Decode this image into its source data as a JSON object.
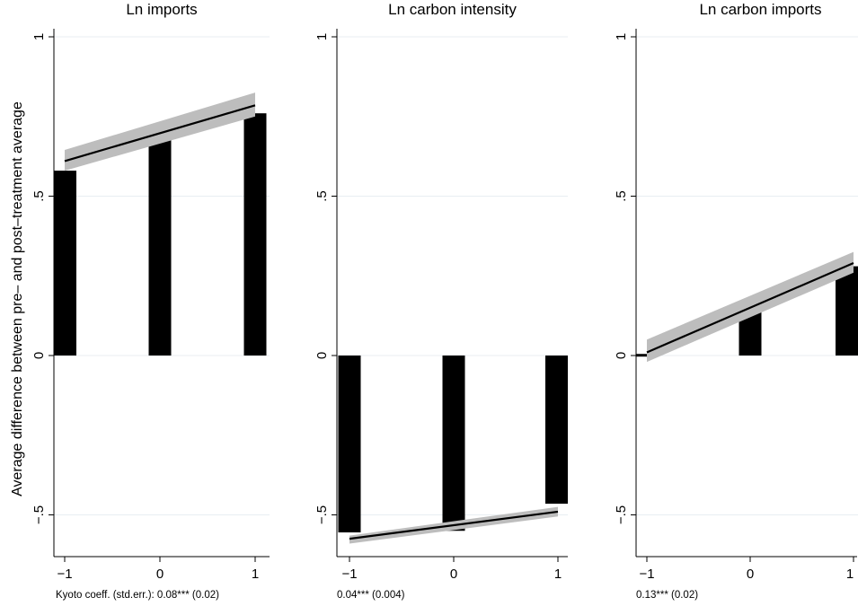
{
  "chart_data": {
    "type": "bar",
    "y_axis_title": "Average difference between pre– and post–treatment average",
    "panels": [
      {
        "title": "Ln imports",
        "note": "Kyoto coeff. (std.err.): 0.08*** (0.02)",
        "x_ticks": [
          "−1",
          "0",
          "1"
        ],
        "y_ticks": [
          "−.5",
          "0",
          ".5",
          "1"
        ],
        "x_values": [
          -1,
          0,
          1
        ],
        "values": [
          0.58,
          0.72,
          0.76
        ],
        "fit": {
          "y_at_min": 0.61,
          "y_at_max": 0.785
        },
        "ci": {
          "low_at_min": 0.58,
          "high_at_min": 0.645,
          "low_at_max": 0.75,
          "high_at_max": 0.825
        },
        "ylim": [
          -0.62,
          1.05
        ],
        "xlim": [
          -1.08,
          1.12
        ]
      },
      {
        "title": "Ln carbon intensity",
        "note": "0.04*** (0.004)",
        "x_ticks": [
          "−1",
          "0",
          "1"
        ],
        "y_ticks": [
          "−.5",
          "0",
          ".5",
          "1"
        ],
        "x_values": [
          -1,
          0,
          1
        ],
        "values": [
          -0.555,
          -0.55,
          -0.465
        ],
        "fit": {
          "y_at_min": -0.575,
          "y_at_max": -0.49
        },
        "ci": {
          "low_at_min": -0.59,
          "high_at_min": -0.565,
          "low_at_max": -0.505,
          "high_at_max": -0.475
        },
        "ylim": [
          -0.62,
          1.05
        ],
        "xlim": [
          -1.08,
          1.12
        ]
      },
      {
        "title": "Ln carbon imports",
        "note": "0.13*** (0.02)",
        "x_ticks": [
          "−1",
          "0",
          "1"
        ],
        "y_ticks": [
          "−.5",
          "0",
          ".5",
          "1"
        ],
        "x_values": [
          -1,
          0,
          1
        ],
        "values": [
          0.005,
          0.15,
          0.28
        ],
        "fit": {
          "y_at_min": 0.01,
          "y_at_max": 0.29
        },
        "ci": {
          "low_at_min": -0.02,
          "high_at_min": 0.05,
          "low_at_max": 0.26,
          "high_at_max": 0.325
        },
        "ylim": [
          -0.62,
          1.05
        ],
        "xlim": [
          -1.08,
          1.12
        ]
      }
    ],
    "grid": true,
    "legend": "none"
  }
}
